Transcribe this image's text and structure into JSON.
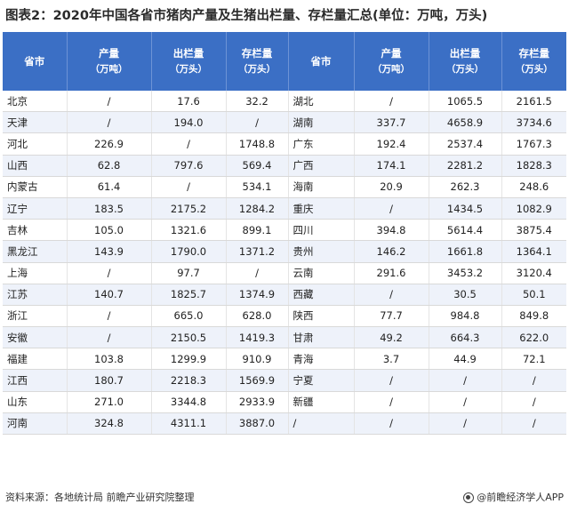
{
  "title": "图表2：2020年中国各省市猪肉产量及生猪出栏量、存栏量汇总(单位：万吨，万头)",
  "headers": {
    "province": "省市",
    "production": "产量",
    "production_unit": "（万吨）",
    "slaughter": "出栏量",
    "slaughter_unit": "（万头）",
    "inventory": "存栏量",
    "inventory_unit": "（万头）"
  },
  "left_rows": [
    {
      "province": "北京",
      "production": "/",
      "slaughter": "17.6",
      "inventory": "32.2"
    },
    {
      "province": "天津",
      "production": "/",
      "slaughter": "194.0",
      "inventory": "/"
    },
    {
      "province": "河北",
      "production": "226.9",
      "slaughter": "/",
      "inventory": "1748.8"
    },
    {
      "province": "山西",
      "production": "62.8",
      "slaughter": "797.6",
      "inventory": "569.4"
    },
    {
      "province": "内蒙古",
      "production": "61.4",
      "slaughter": "/",
      "inventory": "534.1"
    },
    {
      "province": "辽宁",
      "production": "183.5",
      "slaughter": "2175.2",
      "inventory": "1284.2"
    },
    {
      "province": "吉林",
      "production": "105.0",
      "slaughter": "1321.6",
      "inventory": "899.1"
    },
    {
      "province": "黑龙江",
      "production": "143.9",
      "slaughter": "1790.0",
      "inventory": "1371.2"
    },
    {
      "province": "上海",
      "production": "/",
      "slaughter": "97.7",
      "inventory": "/"
    },
    {
      "province": "江苏",
      "production": "140.7",
      "slaughter": "1825.7",
      "inventory": "1374.9"
    },
    {
      "province": "浙江",
      "production": "/",
      "slaughter": "665.0",
      "inventory": "628.0"
    },
    {
      "province": "安徽",
      "production": "/",
      "slaughter": "2150.5",
      "inventory": "1419.3"
    },
    {
      "province": "福建",
      "production": "103.8",
      "slaughter": "1299.9",
      "inventory": "910.9"
    },
    {
      "province": "江西",
      "production": "180.7",
      "slaughter": "2218.3",
      "inventory": "1569.9"
    },
    {
      "province": "山东",
      "production": "271.0",
      "slaughter": "3344.8",
      "inventory": "2933.9"
    },
    {
      "province": "河南",
      "production": "324.8",
      "slaughter": "4311.1",
      "inventory": "3887.0"
    }
  ],
  "right_rows": [
    {
      "province": "湖北",
      "production": "/",
      "slaughter": "1065.5",
      "inventory": "2161.5"
    },
    {
      "province": "湖南",
      "production": "337.7",
      "slaughter": "4658.9",
      "inventory": "3734.6"
    },
    {
      "province": "广东",
      "production": "192.4",
      "slaughter": "2537.4",
      "inventory": "1767.3"
    },
    {
      "province": "广西",
      "production": "174.1",
      "slaughter": "2281.2",
      "inventory": "1828.3"
    },
    {
      "province": "海南",
      "production": "20.9",
      "slaughter": "262.3",
      "inventory": "248.6"
    },
    {
      "province": "重庆",
      "production": "/",
      "slaughter": "1434.5",
      "inventory": "1082.9"
    },
    {
      "province": "四川",
      "production": "394.8",
      "slaughter": "5614.4",
      "inventory": "3875.4"
    },
    {
      "province": "贵州",
      "production": "146.2",
      "slaughter": "1661.8",
      "inventory": "1364.1"
    },
    {
      "province": "云南",
      "production": "291.6",
      "slaughter": "3453.2",
      "inventory": "3120.4"
    },
    {
      "province": "西藏",
      "production": "/",
      "slaughter": "30.5",
      "inventory": "50.1"
    },
    {
      "province": "陕西",
      "production": "77.7",
      "slaughter": "984.8",
      "inventory": "849.8"
    },
    {
      "province": "甘肃",
      "production": "49.2",
      "slaughter": "664.3",
      "inventory": "622.0"
    },
    {
      "province": "青海",
      "production": "3.7",
      "slaughter": "44.9",
      "inventory": "72.1"
    },
    {
      "province": "宁夏",
      "production": "/",
      "slaughter": "/",
      "inventory": "/"
    },
    {
      "province": "新疆",
      "production": "/",
      "slaughter": "/",
      "inventory": "/"
    },
    {
      "province": "/",
      "production": "/",
      "slaughter": "/",
      "inventory": "/"
    }
  ],
  "footer": {
    "source": "资料来源：各地统计局 前瞻产业研究院整理",
    "brand": "@前瞻经济学人APP",
    "brand_icon": "qianzhan-logo-icon"
  },
  "colors": {
    "header_bg": "#3b6fc5",
    "header_text": "#ffffff",
    "stripe": "#eef2fa"
  }
}
